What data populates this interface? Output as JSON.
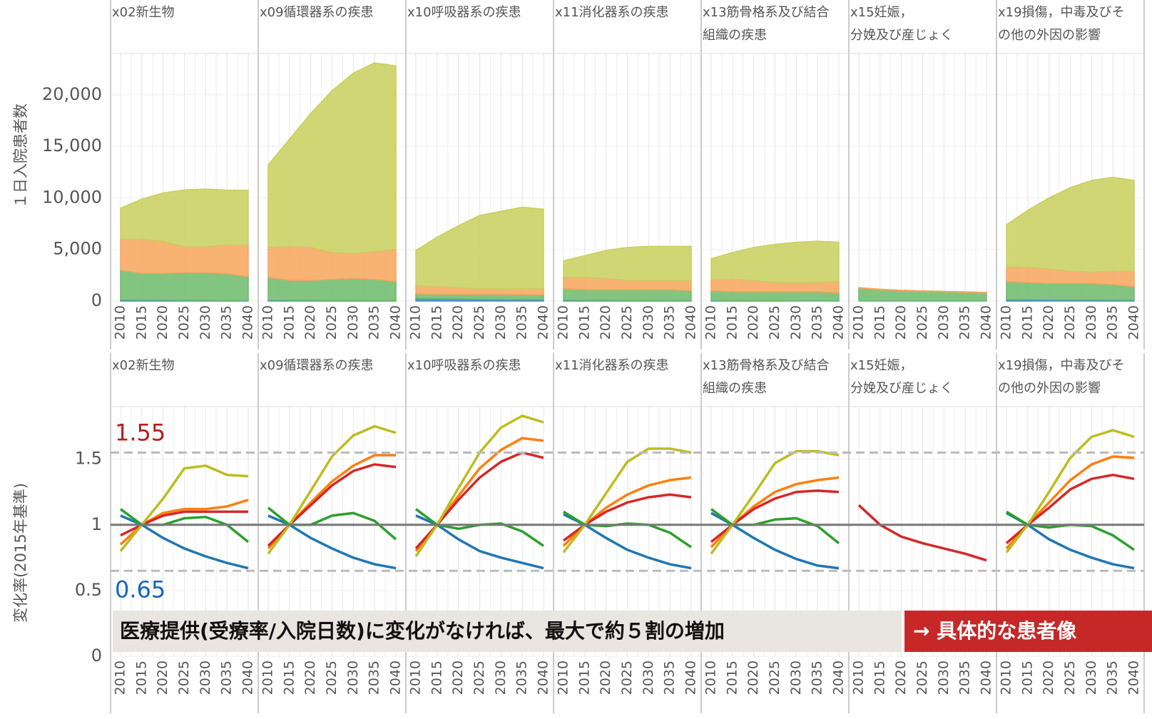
{
  "chart_data": [
    {
      "type": "stacked-area",
      "ylabel": "１日入院患者数",
      "x": [
        2010,
        2015,
        2020,
        2025,
        2030,
        2035,
        2040
      ],
      "ylim": [
        0,
        24000
      ],
      "yticks": [
        0,
        {
          "value": 5000,
          "label": "5,000"
        },
        {
          "value": 10000,
          "label": "10,000"
        },
        {
          "value": 15000,
          "label": "15,000"
        },
        {
          "value": 20000,
          "label": "20,000"
        }
      ],
      "panels": [
        {
          "title": [
            "x02新生物"
          ],
          "series": [
            {
              "color": "#3a86c8",
              "values": [
                100,
                90,
                80,
                70,
                60,
                55,
                50
              ]
            },
            {
              "color": "#6cbb6a",
              "values": [
                2900,
                2600,
                2600,
                2700,
                2700,
                2600,
                2300
              ]
            },
            {
              "color": "#f7a45c",
              "values": [
                3000,
                3300,
                3100,
                2500,
                2500,
                2800,
                3100
              ]
            },
            {
              "color": "#c9cf5d",
              "values": [
                3000,
                3900,
                4700,
                5500,
                5600,
                5300,
                5300
              ]
            }
          ]
        },
        {
          "title": [
            "x09循環器系の疾患"
          ],
          "series": [
            {
              "color": "#3a86c8",
              "values": [
                80,
                70,
                60,
                55,
                50,
                45,
                40
              ]
            },
            {
              "color": "#6cbb6a",
              "values": [
                2220,
                1930,
                1940,
                2045,
                2150,
                2055,
                1860
              ]
            },
            {
              "color": "#f7a45c",
              "values": [
                2900,
                3300,
                3200,
                2600,
                2400,
                2700,
                3100
              ]
            },
            {
              "color": "#c9cf5d",
              "values": [
                8000,
                10400,
                13000,
                15700,
                17500,
                18300,
                17800
              ]
            }
          ]
        },
        {
          "title": [
            "x10呼吸器系の疾患"
          ],
          "series": [
            {
              "color": "#3a86c8",
              "values": [
                250,
                230,
                200,
                180,
                160,
                150,
                140
              ]
            },
            {
              "color": "#6cbb6a",
              "values": [
                450,
                420,
                450,
                470,
                490,
                480,
                460
              ]
            },
            {
              "color": "#f7a45c",
              "values": [
                800,
                750,
                650,
                550,
                550,
                570,
                600
              ]
            },
            {
              "color": "#c9cf5d",
              "values": [
                3400,
                4800,
                6000,
                7100,
                7500,
                7900,
                7700
              ]
            }
          ]
        },
        {
          "title": [
            "x11消化器系の疾患"
          ],
          "series": [
            {
              "color": "#3a86c8",
              "values": [
                80,
                70,
                60,
                55,
                50,
                45,
                40
              ]
            },
            {
              "color": "#6cbb6a",
              "values": [
                1120,
                1030,
                1040,
                1045,
                1050,
                1055,
                960
              ]
            },
            {
              "color": "#f7a45c",
              "values": [
                1100,
                1200,
                1100,
                900,
                900,
                900,
                1000
              ]
            },
            {
              "color": "#c9cf5d",
              "values": [
                1600,
                2100,
                2700,
                3200,
                3300,
                3300,
                3300
              ]
            }
          ]
        },
        {
          "title": [
            "x13筋骨格系及び結合",
            "組織の疾患"
          ],
          "series": [
            {
              "color": "#3a86c8",
              "values": [
                50,
                45,
                40,
                35,
                30,
                28,
                25
              ]
            },
            {
              "color": "#6cbb6a",
              "values": [
                950,
                855,
                860,
                865,
                870,
                872,
                775
              ]
            },
            {
              "color": "#f7a45c",
              "values": [
                1100,
                1200,
                1100,
                900,
                900,
                900,
                1100
              ]
            },
            {
              "color": "#c9cf5d",
              "values": [
                2000,
                2600,
                3200,
                3700,
                3900,
                4000,
                3800
              ]
            }
          ]
        },
        {
          "title": [
            "x15妊娠，",
            "分娩及び産じょく"
          ],
          "series": [
            {
              "color": "#3a86c8",
              "values": [
                20,
                18,
                15,
                13,
                12,
                11,
                10
              ]
            },
            {
              "color": "#6cbb6a",
              "values": [
                1230,
                1080,
                990,
                930,
                890,
                840,
                790
              ]
            },
            {
              "color": "#f7a45c",
              "values": [
                50,
                50,
                45,
                40,
                40,
                40,
                40
              ]
            }
          ]
        },
        {
          "title": [
            "x19損傷，中毒及びそ",
            "の他の外因の影響"
          ],
          "series": [
            {
              "color": "#3a86c8",
              "values": [
                150,
                130,
                120,
                110,
                100,
                95,
                90
              ]
            },
            {
              "color": "#6cbb6a",
              "values": [
                1750,
                1670,
                1580,
                1590,
                1600,
                1505,
                1310
              ]
            },
            {
              "color": "#f7a45c",
              "values": [
                1400,
                1500,
                1400,
                1200,
                1100,
                1300,
                1500
              ]
            },
            {
              "color": "#c9cf5d",
              "values": [
                4100,
                5500,
                6900,
                8100,
                8900,
                9100,
                8800
              ]
            }
          ]
        }
      ]
    },
    {
      "type": "line",
      "ylabel": "変化率(2015年基準)",
      "x": [
        2010,
        2015,
        2020,
        2025,
        2030,
        2035,
        2040
      ],
      "ylim": [
        0,
        1.9
      ],
      "yticks": [
        0,
        0.5,
        1,
        1.5
      ],
      "reference_lines": [
        {
          "value": 1,
          "style": "solid"
        },
        {
          "value": 1.55,
          "style": "dashed",
          "label": "1.55",
          "label_color": "#b71c1c"
        },
        {
          "value": 0.65,
          "style": "dashed",
          "label": "0.65",
          "label_color": "#1565c0"
        }
      ],
      "panels": [
        {
          "title": [
            "x02新生物"
          ],
          "series": [
            {
              "color": "#1f77b4",
              "values": [
                1.07,
                1.0,
                0.9,
                0.82,
                0.76,
                0.71,
                0.67
              ]
            },
            {
              "color": "#2ca02c",
              "values": [
                1.12,
                1.0,
                1.0,
                1.05,
                1.06,
                1.0,
                0.87
              ]
            },
            {
              "color": "#ff7f0e",
              "values": [
                0.85,
                1.0,
                1.09,
                1.12,
                1.12,
                1.14,
                1.19
              ]
            },
            {
              "color": "#d62728",
              "values": [
                0.92,
                1.0,
                1.07,
                1.1,
                1.1,
                1.1,
                1.1
              ]
            },
            {
              "color": "#bcbd22",
              "values": [
                0.8,
                1.0,
                1.2,
                1.43,
                1.45,
                1.38,
                1.37
              ]
            }
          ]
        },
        {
          "title": [
            "x09循環器系の疾患"
          ],
          "series": [
            {
              "color": "#1f77b4",
              "values": [
                1.07,
                1.0,
                0.9,
                0.82,
                0.75,
                0.7,
                0.67
              ]
            },
            {
              "color": "#2ca02c",
              "values": [
                1.13,
                1.0,
                1.0,
                1.07,
                1.09,
                1.03,
                0.89
              ]
            },
            {
              "color": "#ff7f0e",
              "values": [
                0.82,
                1.0,
                1.17,
                1.33,
                1.45,
                1.53,
                1.53
              ]
            },
            {
              "color": "#d62728",
              "values": [
                0.84,
                1.0,
                1.15,
                1.3,
                1.41,
                1.46,
                1.44
              ]
            },
            {
              "color": "#bcbd22",
              "values": [
                0.78,
                1.0,
                1.26,
                1.52,
                1.68,
                1.75,
                1.7
              ]
            }
          ]
        },
        {
          "title": [
            "x10呼吸器系の疾患"
          ],
          "series": [
            {
              "color": "#1f77b4",
              "values": [
                1.07,
                1.0,
                0.89,
                0.8,
                0.75,
                0.71,
                0.67
              ]
            },
            {
              "color": "#2ca02c",
              "values": [
                1.12,
                1.0,
                0.97,
                1.0,
                1.01,
                0.95,
                0.84
              ]
            },
            {
              "color": "#ff7f0e",
              "values": [
                0.8,
                1.0,
                1.22,
                1.43,
                1.57,
                1.66,
                1.64
              ]
            },
            {
              "color": "#d62728",
              "values": [
                0.82,
                1.0,
                1.19,
                1.36,
                1.48,
                1.55,
                1.51
              ]
            },
            {
              "color": "#bcbd22",
              "values": [
                0.76,
                1.0,
                1.28,
                1.55,
                1.74,
                1.83,
                1.78
              ]
            }
          ]
        },
        {
          "title": [
            "x11消化器系の疾患"
          ],
          "series": [
            {
              "color": "#1f77b4",
              "values": [
                1.08,
                1.0,
                0.9,
                0.81,
                0.75,
                0.7,
                0.67
              ]
            },
            {
              "color": "#2ca02c",
              "values": [
                1.1,
                1.0,
                0.99,
                1.01,
                1.0,
                0.94,
                0.83
              ]
            },
            {
              "color": "#ff7f0e",
              "values": [
                0.84,
                1.0,
                1.13,
                1.23,
                1.3,
                1.34,
                1.36
              ]
            },
            {
              "color": "#d62728",
              "values": [
                0.88,
                1.0,
                1.1,
                1.17,
                1.21,
                1.23,
                1.21
              ]
            },
            {
              "color": "#bcbd22",
              "values": [
                0.79,
                1.0,
                1.24,
                1.48,
                1.58,
                1.58,
                1.55
              ]
            }
          ]
        },
        {
          "title": [
            "x13筋骨格系及び結合",
            "組織の疾患"
          ],
          "series": [
            {
              "color": "#1f77b4",
              "values": [
                1.09,
                1.0,
                0.9,
                0.81,
                0.74,
                0.69,
                0.67
              ]
            },
            {
              "color": "#2ca02c",
              "values": [
                1.12,
                1.0,
                1.0,
                1.04,
                1.05,
                0.99,
                0.86
              ]
            },
            {
              "color": "#ff7f0e",
              "values": [
                0.83,
                1.0,
                1.14,
                1.25,
                1.31,
                1.34,
                1.36
              ]
            },
            {
              "color": "#d62728",
              "values": [
                0.87,
                1.0,
                1.12,
                1.2,
                1.25,
                1.26,
                1.25
              ]
            },
            {
              "color": "#bcbd22",
              "values": [
                0.78,
                1.0,
                1.23,
                1.47,
                1.56,
                1.56,
                1.53
              ]
            }
          ]
        },
        {
          "title": [
            "x15妊娠，",
            "分娩及び産じょく"
          ],
          "series": [
            {
              "color": "#d62728",
              "values": [
                1.15,
                1.0,
                0.91,
                0.86,
                0.82,
                0.78,
                0.73
              ]
            }
          ]
        },
        {
          "title": [
            "x19損傷，中毒及びそ",
            "の他の外因の影響"
          ],
          "series": [
            {
              "color": "#1f77b4",
              "values": [
                1.09,
                1.0,
                0.89,
                0.81,
                0.75,
                0.7,
                0.67
              ]
            },
            {
              "color": "#2ca02c",
              "values": [
                1.1,
                1.0,
                0.98,
                1.0,
                0.99,
                0.92,
                0.81
              ]
            },
            {
              "color": "#ff7f0e",
              "values": [
                0.82,
                1.0,
                1.17,
                1.34,
                1.46,
                1.52,
                1.51
              ]
            },
            {
              "color": "#d62728",
              "values": [
                0.86,
                1.0,
                1.13,
                1.27,
                1.35,
                1.38,
                1.35
              ]
            },
            {
              "color": "#bcbd22",
              "values": [
                0.79,
                1.0,
                1.25,
                1.51,
                1.67,
                1.72,
                1.67
              ]
            }
          ]
        }
      ]
    }
  ],
  "callout": {
    "text": "医療提供(受療率/入院日数)に変化がなければ、最大で約５割の増加",
    "link": "→ 具体的な患者像"
  }
}
